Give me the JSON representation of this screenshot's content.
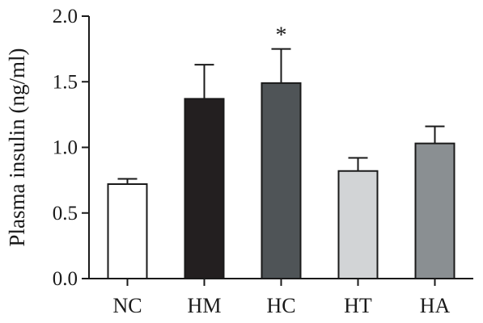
{
  "chart_data": {
    "type": "bar",
    "ylabel": "Plasma insulin (ng/ml)",
    "xlabel": "",
    "ylim": [
      0,
      2.0
    ],
    "yticks": [
      "0.0",
      "0.5",
      "1.0",
      "1.5",
      "2.0"
    ],
    "categories": [
      "NC",
      "HM",
      "HC",
      "HT",
      "HA"
    ],
    "values": [
      0.72,
      1.37,
      1.49,
      0.82,
      1.03
    ],
    "errors": [
      0.04,
      0.26,
      0.26,
      0.1,
      0.13
    ],
    "bar_colors": [
      "#ffffff",
      "#231f20",
      "#4f5457",
      "#d2d4d6",
      "#8a8f92"
    ],
    "annotations": [
      {
        "category": "HC",
        "text": "*"
      }
    ],
    "grid": false,
    "legend": "none"
  }
}
